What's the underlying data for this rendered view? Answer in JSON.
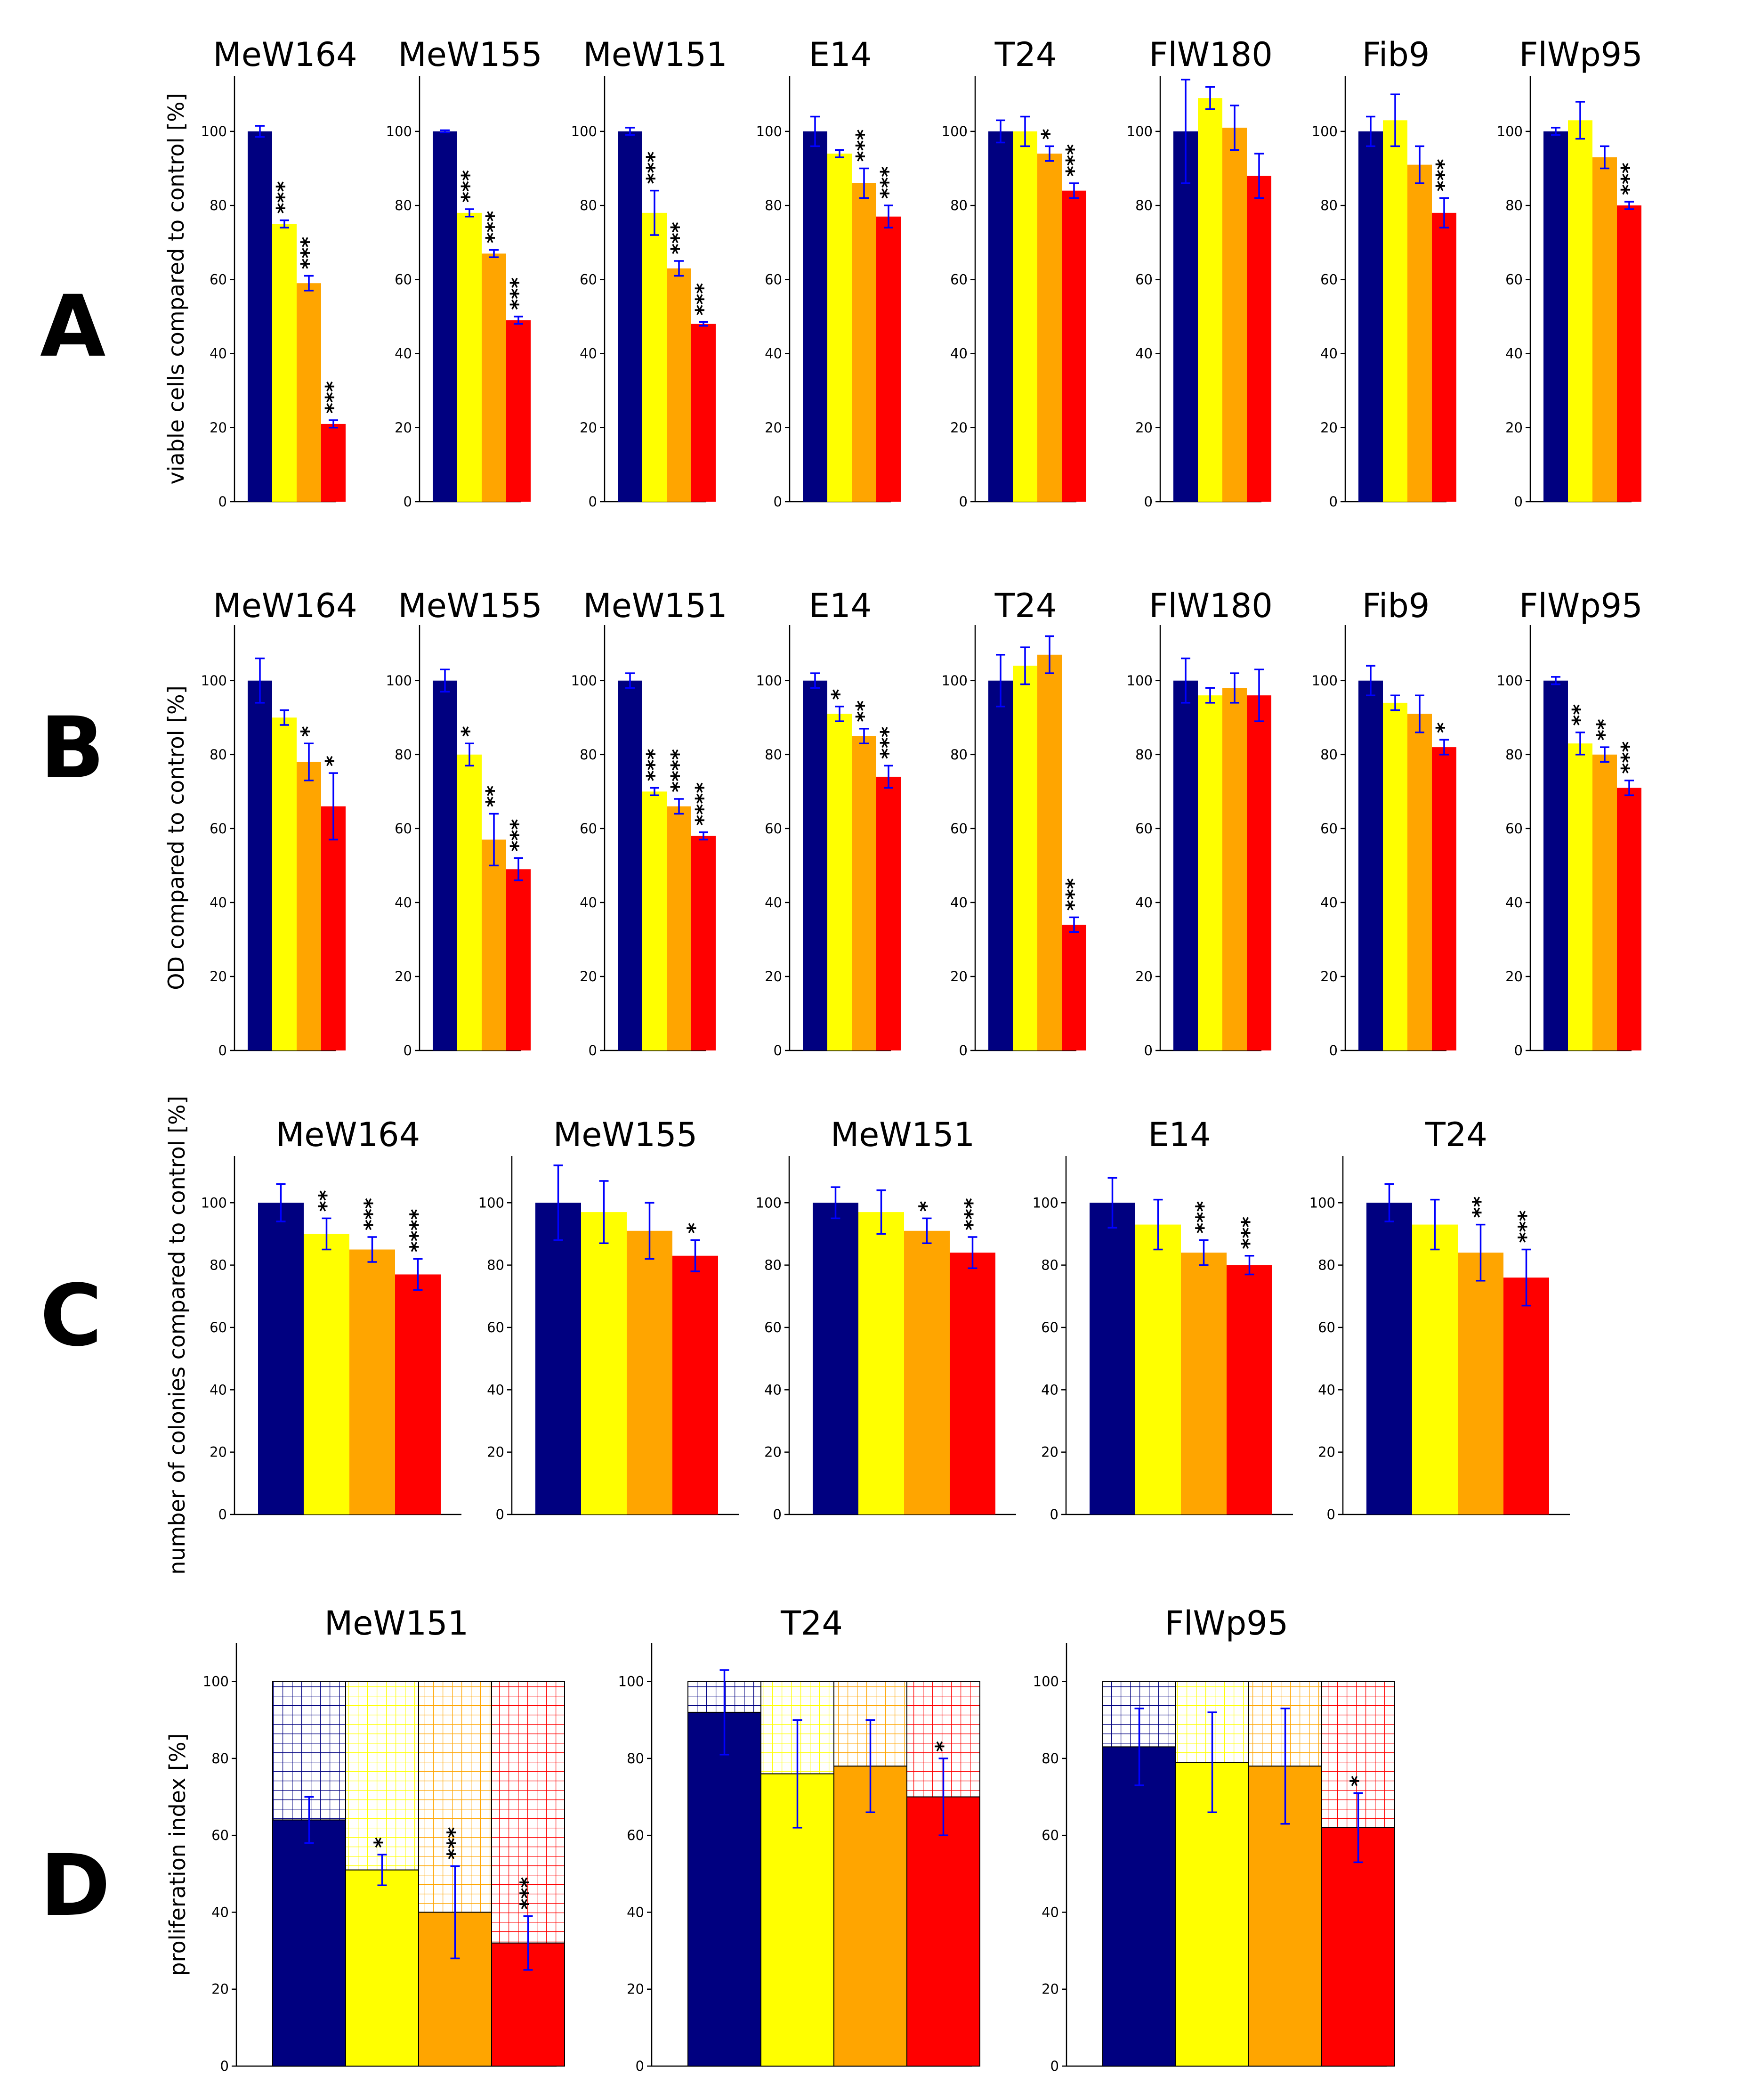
{
  "colors": {
    "control": "#000080",
    "c1": "#ffff00",
    "c2": "#ffa500",
    "c3": "#ff0000",
    "error": "#0000ff"
  },
  "panels": [
    {
      "letter": "A",
      "ylabel": "viable cells compared to control [%]"
    },
    {
      "letter": "B",
      "ylabel": "OD compared to control [%]"
    },
    {
      "letter": "C",
      "ylabel": "number of colonies compared to control [%]"
    },
    {
      "letter": "D",
      "ylabel": "proliferation index [%]"
    }
  ],
  "chart_data": [
    {
      "panel": "A",
      "type": "bar",
      "ylabel": "viable cells compared to control [%]",
      "ylim": [
        0,
        115
      ],
      "yticks": [
        "0",
        "20",
        "40",
        "60",
        "80",
        "100"
      ],
      "subplots": [
        {
          "title": "MeW164",
          "values": [
            100,
            75,
            59,
            21
          ],
          "errors": [
            1.5,
            1,
            2,
            1
          ],
          "sig": [
            "",
            "***",
            "***",
            "***"
          ]
        },
        {
          "title": "MeW155",
          "values": [
            100,
            78,
            67,
            49
          ],
          "errors": [
            0.3,
            1,
            1,
            1
          ],
          "sig": [
            "",
            "***",
            "***",
            "***"
          ]
        },
        {
          "title": "MeW151",
          "values": [
            100,
            78,
            63,
            48
          ],
          "errors": [
            1,
            6,
            2,
            0.5
          ],
          "sig": [
            "",
            "***",
            "***",
            "***"
          ]
        },
        {
          "title": "E14",
          "values": [
            100,
            94,
            86,
            77
          ],
          "errors": [
            4,
            1,
            4,
            3
          ],
          "sig": [
            "",
            "",
            "***",
            "***"
          ]
        },
        {
          "title": "T24",
          "values": [
            100,
            100,
            94,
            84
          ],
          "errors": [
            3,
            4,
            2,
            2
          ],
          "sig": [
            "",
            "",
            "*",
            "***"
          ]
        },
        {
          "title": "FlW180",
          "values": [
            100,
            109,
            101,
            88
          ],
          "errors": [
            14,
            3,
            6,
            6
          ],
          "sig": [
            "",
            "",
            "",
            ""
          ]
        },
        {
          "title": "Fib9",
          "values": [
            100,
            103,
            91,
            78
          ],
          "errors": [
            4,
            7,
            5,
            4
          ],
          "sig": [
            "",
            "",
            "",
            "***"
          ]
        },
        {
          "title": "FlWp95",
          "values": [
            100,
            103,
            93,
            80
          ],
          "errors": [
            1,
            5,
            3,
            1
          ],
          "sig": [
            "",
            "",
            "",
            "***"
          ]
        }
      ]
    },
    {
      "panel": "B",
      "type": "bar",
      "ylabel": "OD compared to control [%]",
      "ylim": [
        0,
        115
      ],
      "yticks": [
        "0",
        "20",
        "40",
        "60",
        "80",
        "100"
      ],
      "subplots": [
        {
          "title": "MeW164",
          "values": [
            100,
            90,
            78,
            66
          ],
          "errors": [
            6,
            2,
            5,
            9
          ],
          "sig": [
            "",
            "",
            "*",
            "*"
          ]
        },
        {
          "title": "MeW155",
          "values": [
            100,
            80,
            57,
            49
          ],
          "errors": [
            3,
            3,
            7,
            3
          ],
          "sig": [
            "",
            "*",
            "**",
            "***"
          ]
        },
        {
          "title": "MeW151",
          "values": [
            100,
            70,
            66,
            58
          ],
          "errors": [
            2,
            1,
            2,
            1
          ],
          "sig": [
            "",
            "***",
            "****",
            "****"
          ]
        },
        {
          "title": "E14",
          "values": [
            100,
            91,
            85,
            74
          ],
          "errors": [
            2,
            2,
            2,
            3
          ],
          "sig": [
            "",
            "*",
            "**",
            "***"
          ]
        },
        {
          "title": "T24",
          "values": [
            100,
            104,
            107,
            34
          ],
          "errors": [
            7,
            5,
            5,
            2
          ],
          "sig": [
            "",
            "",
            "",
            "***"
          ]
        },
        {
          "title": "FlW180",
          "values": [
            100,
            96,
            98,
            96
          ],
          "errors": [
            6,
            2,
            4,
            7
          ],
          "sig": [
            "",
            "",
            "",
            ""
          ]
        },
        {
          "title": "Fib9",
          "values": [
            100,
            94,
            91,
            82
          ],
          "errors": [
            4,
            2,
            5,
            2
          ],
          "sig": [
            "",
            "",
            "",
            "*"
          ]
        },
        {
          "title": "FlWp95",
          "values": [
            100,
            83,
            80,
            71
          ],
          "errors": [
            1,
            3,
            2,
            2
          ],
          "sig": [
            "",
            "**",
            "**",
            "***"
          ]
        }
      ]
    },
    {
      "panel": "C",
      "type": "bar",
      "ylabel": "number of colonies compared to control [%]",
      "ylim": [
        0,
        115
      ],
      "yticks": [
        "0",
        "20",
        "40",
        "60",
        "80",
        "100"
      ],
      "subplots": [
        {
          "title": "MeW164",
          "values": [
            100,
            90,
            85,
            77
          ],
          "errors": [
            6,
            5,
            4,
            5
          ],
          "sig": [
            "",
            "**",
            "***",
            "****"
          ]
        },
        {
          "title": "MeW155",
          "values": [
            100,
            97,
            91,
            83
          ],
          "errors": [
            12,
            10,
            9,
            5
          ],
          "sig": [
            "",
            "",
            "",
            "*"
          ]
        },
        {
          "title": "MeW151",
          "values": [
            100,
            97,
            91,
            84
          ],
          "errors": [
            5,
            7,
            4,
            5
          ],
          "sig": [
            "",
            "",
            "*",
            "***"
          ]
        },
        {
          "title": "E14",
          "values": [
            100,
            93,
            84,
            80
          ],
          "errors": [
            8,
            8,
            4,
            3
          ],
          "sig": [
            "",
            "",
            "***",
            "***"
          ]
        },
        {
          "title": "T24",
          "values": [
            100,
            93,
            84,
            76
          ],
          "errors": [
            6,
            8,
            9,
            9
          ],
          "sig": [
            "",
            "",
            "**",
            "***"
          ]
        }
      ]
    },
    {
      "panel": "D",
      "type": "bar",
      "ylabel": "proliferation index [%]",
      "ylim": [
        0,
        110
      ],
      "yticks": [
        "0",
        "20",
        "40",
        "60",
        "80",
        "100"
      ],
      "stacked_total": 100,
      "subplots": [
        {
          "title": "MeW151",
          "values": [
            64,
            51,
            40,
            32
          ],
          "errors": [
            6,
            4,
            12,
            7
          ],
          "sig": [
            "",
            "*",
            "***",
            "***"
          ]
        },
        {
          "title": "T24",
          "values": [
            92,
            76,
            78,
            70
          ],
          "errors": [
            11,
            14,
            12,
            10
          ],
          "sig": [
            "",
            "",
            "",
            "*"
          ]
        },
        {
          "title": "FlWp95",
          "values": [
            83,
            79,
            78,
            62
          ],
          "errors": [
            10,
            13,
            15,
            9
          ],
          "sig": [
            "",
            "",
            "",
            "*"
          ]
        }
      ]
    }
  ]
}
